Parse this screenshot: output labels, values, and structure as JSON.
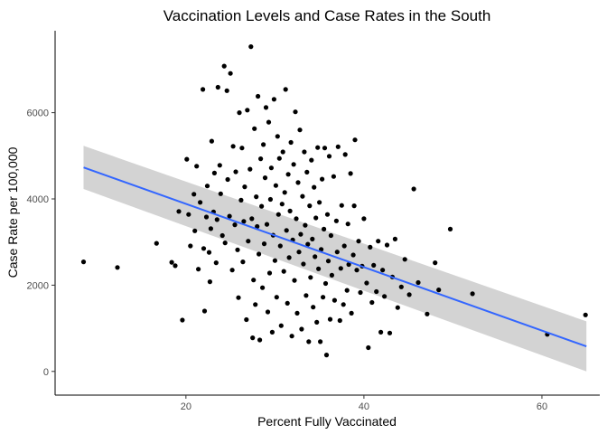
{
  "chart_data": {
    "type": "scatter",
    "title": "Vaccination Levels and Case Rates in the South",
    "xlabel": "Percent Fully Vaccinated",
    "ylabel": "Case Rate per 100,000",
    "xlim": [
      5.3,
      66.5
    ],
    "ylim": [
      -550,
      7900
    ],
    "x_ticks": [
      20,
      40,
      60
    ],
    "y_ticks": [
      0,
      2000,
      4000,
      6000
    ],
    "grid": false,
    "legend": "none",
    "point_color": "#000000",
    "fit_line": {
      "method": "linear regression with confidence band",
      "color": "#3366FF",
      "band_color": "#D3D3D3",
      "x": [
        8.5,
        65
      ],
      "y": [
        4730,
        580
      ],
      "ci_lower": [
        4230,
        0
      ],
      "ci_upper": [
        5230,
        1160
      ]
    },
    "points": [
      [
        8.5,
        2540
      ],
      [
        12.3,
        2410
      ],
      [
        16.7,
        2970
      ],
      [
        18.4,
        2530
      ],
      [
        18.8,
        2450
      ],
      [
        19.2,
        3710
      ],
      [
        19.6,
        1190
      ],
      [
        20.1,
        4920
      ],
      [
        20.3,
        3640
      ],
      [
        20.5,
        2910
      ],
      [
        20.9,
        4110
      ],
      [
        21.0,
        3260
      ],
      [
        21.2,
        4760
      ],
      [
        21.4,
        2370
      ],
      [
        21.6,
        3920
      ],
      [
        21.9,
        6540
      ],
      [
        22.0,
        2850
      ],
      [
        22.1,
        1400
      ],
      [
        22.3,
        3580
      ],
      [
        22.4,
        4300
      ],
      [
        22.6,
        2760
      ],
      [
        22.7,
        2080
      ],
      [
        22.8,
        3310
      ],
      [
        22.9,
        5340
      ],
      [
        23.1,
        3700
      ],
      [
        23.2,
        4600
      ],
      [
        23.4,
        2520
      ],
      [
        23.5,
        3520
      ],
      [
        23.6,
        6590
      ],
      [
        23.8,
        4780
      ],
      [
        23.9,
        4120
      ],
      [
        24.1,
        3150
      ],
      [
        24.3,
        7080
      ],
      [
        24.4,
        2980
      ],
      [
        24.6,
        6510
      ],
      [
        24.7,
        4450
      ],
      [
        24.9,
        3600
      ],
      [
        25.0,
        6910
      ],
      [
        25.2,
        2350
      ],
      [
        25.3,
        5220
      ],
      [
        25.5,
        3400
      ],
      [
        25.6,
        4630
      ],
      [
        25.8,
        2820
      ],
      [
        25.9,
        1710
      ],
      [
        26.0,
        6000
      ],
      [
        26.2,
        3970
      ],
      [
        26.3,
        5180
      ],
      [
        26.4,
        2540
      ],
      [
        26.5,
        3480
      ],
      [
        26.6,
        4280
      ],
      [
        26.8,
        1200
      ],
      [
        26.9,
        6060
      ],
      [
        27.0,
        3020
      ],
      [
        27.2,
        4690
      ],
      [
        27.3,
        7530
      ],
      [
        27.4,
        3540
      ],
      [
        27.5,
        780
      ],
      [
        27.6,
        2120
      ],
      [
        27.7,
        5630
      ],
      [
        27.8,
        1550
      ],
      [
        27.9,
        4050
      ],
      [
        28.0,
        3360
      ],
      [
        28.1,
        6380
      ],
      [
        28.2,
        2720
      ],
      [
        28.3,
        730
      ],
      [
        28.4,
        4930
      ],
      [
        28.5,
        3830
      ],
      [
        28.6,
        1940
      ],
      [
        28.7,
        5260
      ],
      [
        28.8,
        2960
      ],
      [
        28.9,
        4490
      ],
      [
        29.0,
        6120
      ],
      [
        29.1,
        3410
      ],
      [
        29.2,
        1380
      ],
      [
        29.3,
        5780
      ],
      [
        29.4,
        2280
      ],
      [
        29.5,
        3990
      ],
      [
        29.6,
        4720
      ],
      [
        29.7,
        910
      ],
      [
        29.8,
        3160
      ],
      [
        29.9,
        6310
      ],
      [
        30.0,
        2570
      ],
      [
        30.1,
        4310
      ],
      [
        30.2,
        1720
      ],
      [
        30.3,
        5450
      ],
      [
        30.4,
        3640
      ],
      [
        30.5,
        4940
      ],
      [
        30.6,
        2910
      ],
      [
        30.7,
        1060
      ],
      [
        30.8,
        3880
      ],
      [
        30.9,
        5090
      ],
      [
        31.0,
        2320
      ],
      [
        31.1,
        4150
      ],
      [
        31.2,
        6540
      ],
      [
        31.3,
        3270
      ],
      [
        31.4,
        1580
      ],
      [
        31.5,
        4570
      ],
      [
        31.6,
        2640
      ],
      [
        31.7,
        3720
      ],
      [
        31.8,
        5310
      ],
      [
        31.9,
        820
      ],
      [
        32.0,
        3050
      ],
      [
        32.1,
        4800
      ],
      [
        32.2,
        2110
      ],
      [
        32.3,
        6020
      ],
      [
        32.4,
        3540
      ],
      [
        32.5,
        1350
      ],
      [
        32.6,
        4380
      ],
      [
        32.7,
        2770
      ],
      [
        32.8,
        5600
      ],
      [
        32.9,
        3180
      ],
      [
        33.0,
        980
      ],
      [
        33.1,
        4060
      ],
      [
        33.2,
        2490
      ],
      [
        33.3,
        5090
      ],
      [
        33.4,
        3390
      ],
      [
        33.5,
        1760
      ],
      [
        33.6,
        4620
      ],
      [
        33.7,
        2950
      ],
      [
        33.8,
        690
      ],
      [
        33.9,
        3840
      ],
      [
        34.0,
        2180
      ],
      [
        34.1,
        4900
      ],
      [
        34.2,
        3070
      ],
      [
        34.3,
        1490
      ],
      [
        34.4,
        4270
      ],
      [
        34.5,
        2660
      ],
      [
        34.6,
        3560
      ],
      [
        34.7,
        1140
      ],
      [
        34.8,
        5190
      ],
      [
        34.9,
        2380
      ],
      [
        35.0,
        3920
      ],
      [
        35.1,
        690
      ],
      [
        35.2,
        2830
      ],
      [
        35.3,
        4460
      ],
      [
        35.4,
        1720
      ],
      [
        35.5,
        3300
      ],
      [
        35.6,
        5180
      ],
      [
        35.7,
        2040
      ],
      [
        35.8,
        380
      ],
      [
        35.9,
        3640
      ],
      [
        36.0,
        2560
      ],
      [
        36.1,
        4990
      ],
      [
        36.2,
        1210
      ],
      [
        36.3,
        3150
      ],
      [
        36.4,
        2230
      ],
      [
        36.6,
        4520
      ],
      [
        36.7,
        1650
      ],
      [
        36.9,
        3490
      ],
      [
        37.0,
        2770
      ],
      [
        37.1,
        5210
      ],
      [
        37.3,
        1180
      ],
      [
        37.4,
        2390
      ],
      [
        37.5,
        3850
      ],
      [
        37.7,
        1550
      ],
      [
        37.8,
        2910
      ],
      [
        37.9,
        5030
      ],
      [
        38.1,
        1880
      ],
      [
        38.2,
        3420
      ],
      [
        38.3,
        2480
      ],
      [
        38.5,
        4590
      ],
      [
        38.6,
        1350
      ],
      [
        38.8,
        2700
      ],
      [
        38.9,
        3840
      ],
      [
        39.0,
        5370
      ],
      [
        39.2,
        2350
      ],
      [
        39.4,
        3020
      ],
      [
        39.6,
        1830
      ],
      [
        39.8,
        2440
      ],
      [
        40.0,
        3540
      ],
      [
        40.3,
        2050
      ],
      [
        40.5,
        550
      ],
      [
        40.7,
        2880
      ],
      [
        40.9,
        1600
      ],
      [
        41.1,
        2460
      ],
      [
        41.4,
        1850
      ],
      [
        41.6,
        3020
      ],
      [
        41.9,
        910
      ],
      [
        42.1,
        2350
      ],
      [
        42.3,
        1740
      ],
      [
        42.6,
        2930
      ],
      [
        42.9,
        890
      ],
      [
        43.2,
        2190
      ],
      [
        43.5,
        3070
      ],
      [
        43.8,
        1480
      ],
      [
        44.2,
        1960
      ],
      [
        44.6,
        2600
      ],
      [
        45.1,
        1780
      ],
      [
        45.6,
        4230
      ],
      [
        46.1,
        2060
      ],
      [
        47.1,
        1330
      ],
      [
        48.0,
        2520
      ],
      [
        48.4,
        1890
      ],
      [
        49.7,
        3300
      ],
      [
        52.2,
        1800
      ],
      [
        60.6,
        860
      ],
      [
        64.9,
        1310
      ]
    ]
  }
}
